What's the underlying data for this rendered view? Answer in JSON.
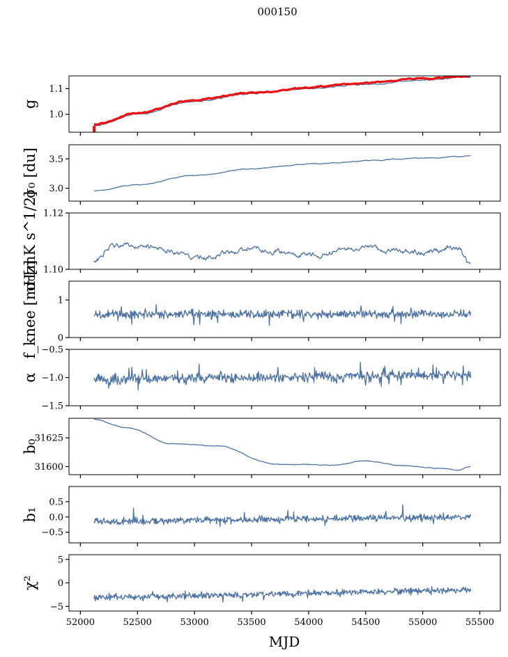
{
  "figure": {
    "title": "000150",
    "xlabel": "MJD"
  },
  "colors": {
    "series": "#4c72a4",
    "overlay": "#ee1111"
  },
  "chart_data": [
    {
      "type": "line",
      "ylabel": "g",
      "xlim": [
        51900,
        55680
      ],
      "ylim": [
        0.93,
        1.15
      ],
      "yticks": [
        1.0,
        1.1
      ],
      "ytick_labels": [
        "1.0",
        "1.1"
      ],
      "series": [
        {
          "role": "data",
          "color": "#4c72a4",
          "shape": "trend",
          "n": 260,
          "noise": 0.002,
          "knots": [
            [
              52120,
              0.955
            ],
            [
              52500,
              1.0
            ],
            [
              53000,
              1.052
            ],
            [
              53500,
              1.08
            ],
            [
              54000,
              1.1
            ],
            [
              54500,
              1.118
            ],
            [
              55000,
              1.133
            ],
            [
              55420,
              1.145
            ]
          ]
        },
        {
          "role": "overlay",
          "color": "#ee1111",
          "shape": "trend",
          "n": 260,
          "noise": 0.002,
          "knots": [
            [
              52120,
              0.96
            ],
            [
              52500,
              1.004
            ],
            [
              53000,
              1.056
            ],
            [
              53500,
              1.084
            ],
            [
              54000,
              1.104
            ],
            [
              54500,
              1.123
            ],
            [
              55000,
              1.14
            ],
            [
              55420,
              1.15
            ]
          ]
        }
      ]
    },
    {
      "type": "line",
      "ylabel": "σ₀ [du]",
      "xlim": [
        51900,
        55680
      ],
      "ylim": [
        2.78,
        3.74
      ],
      "yticks": [
        3.0,
        3.5
      ],
      "ytick_labels": [
        "3.0",
        "3.5"
      ],
      "series": [
        {
          "role": "data",
          "color": "#4c72a4",
          "shape": "trend",
          "n": 260,
          "noise": 0.006,
          "knots": [
            [
              52120,
              2.95
            ],
            [
              52500,
              3.06
            ],
            [
              53000,
              3.22
            ],
            [
              53500,
              3.33
            ],
            [
              54000,
              3.41
            ],
            [
              54500,
              3.47
            ],
            [
              55000,
              3.51
            ],
            [
              55420,
              3.55
            ]
          ]
        }
      ]
    },
    {
      "type": "line",
      "ylabel": "σ₀[mK s^1/2]",
      "xlim": [
        51900,
        55680
      ],
      "ylim": [
        1.1,
        1.12
      ],
      "yticks": [
        1.1,
        1.12
      ],
      "ytick_labels": [
        "1.10",
        "1.12"
      ],
      "series": [
        {
          "role": "data",
          "color": "#4c72a4",
          "shape": "trend",
          "n": 500,
          "noise": 0.0007,
          "knots": [
            [
              52120,
              1.1035
            ],
            [
              52300,
              1.1085
            ],
            [
              52600,
              1.108
            ],
            [
              53000,
              1.1045
            ],
            [
              53600,
              1.107
            ],
            [
              54000,
              1.105
            ],
            [
              54500,
              1.1075
            ],
            [
              55000,
              1.106
            ],
            [
              55300,
              1.108
            ],
            [
              55420,
              1.1015
            ]
          ]
        }
      ]
    },
    {
      "type": "line",
      "ylabel": "f_knee [mHz]",
      "xlim": [
        51900,
        55680
      ],
      "ylim": [
        0,
        1.5
      ],
      "yticks": [
        0,
        1
      ],
      "ytick_labels": [
        "0",
        "1"
      ],
      "series": [
        {
          "role": "data",
          "color": "#4c72a4",
          "shape": "noise",
          "n": 650,
          "mean": 0.62,
          "spread": 0.09,
          "spikes": 0.05,
          "spike_size": 0.3
        }
      ]
    },
    {
      "type": "line",
      "ylabel": "α",
      "xlim": [
        51900,
        55680
      ],
      "ylim": [
        -1.5,
        -0.5
      ],
      "yticks": [
        -1.5,
        -1.0,
        -0.5
      ],
      "ytick_labels": [
        "−1.5",
        "−1.0",
        "−0.5"
      ],
      "series": [
        {
          "role": "data",
          "color": "#4c72a4",
          "shape": "noise",
          "n": 650,
          "mean": -1.03,
          "trend_end": -0.95,
          "spread": 0.07,
          "spikes": 0.06,
          "spike_size": 0.2
        }
      ]
    },
    {
      "type": "line",
      "ylabel": "b₀",
      "xlim": [
        51900,
        55680
      ],
      "ylim": [
        31593,
        31642
      ],
      "yticks": [
        31600,
        31625
      ],
      "ytick_labels": [
        "31600",
        "31625"
      ],
      "series": [
        {
          "role": "data",
          "color": "#4c72a4",
          "shape": "trend",
          "n": 300,
          "noise": 0.25,
          "knots": [
            [
              52120,
              31641
            ],
            [
              52400,
              31634
            ],
            [
              52800,
              31620
            ],
            [
              53200,
              31618
            ],
            [
              53700,
              31602
            ],
            [
              54000,
              31602
            ],
            [
              54200,
              31601
            ],
            [
              54500,
              31605
            ],
            [
              54800,
              31601
            ],
            [
              55200,
              31598
            ],
            [
              55300,
              31597
            ],
            [
              55420,
              31600
            ]
          ]
        }
      ]
    },
    {
      "type": "line",
      "ylabel": "b₁",
      "xlim": [
        51900,
        55680
      ],
      "ylim": [
        -0.85,
        1.0
      ],
      "yticks": [
        -0.5,
        0.0,
        0.5
      ],
      "ytick_labels": [
        "−0.5",
        "0.0",
        "0.5"
      ],
      "series": [
        {
          "role": "data",
          "color": "#4c72a4",
          "shape": "noise",
          "n": 650,
          "mean": -0.15,
          "trend_end": 0.0,
          "spread": 0.09,
          "spikes": 0.05,
          "spike_size": 0.35
        }
      ]
    },
    {
      "type": "line",
      "ylabel": "χ²",
      "xlim": [
        51900,
        55680
      ],
      "ylim": [
        -6,
        6
      ],
      "yticks": [
        -5,
        0,
        5
      ],
      "ytick_labels": [
        "−5",
        "0",
        "5"
      ],
      "series": [
        {
          "role": "data",
          "color": "#4c72a4",
          "shape": "noise",
          "n": 650,
          "mean": -3.2,
          "trend_end": -1.5,
          "spread": 0.55,
          "spikes": 0.05,
          "spike_size": 1.2
        }
      ]
    }
  ],
  "x_axis": {
    "ticks": [
      52000,
      52500,
      53000,
      53500,
      54000,
      54500,
      55000,
      55500
    ],
    "tick_labels": [
      "52000",
      "52500",
      "53000",
      "53500",
      "54000",
      "54500",
      "55000",
      "55500"
    ]
  }
}
